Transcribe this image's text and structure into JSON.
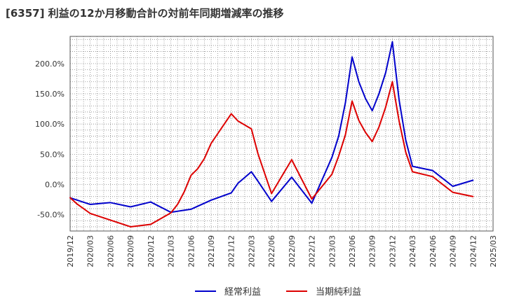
{
  "chart_data": {
    "type": "line",
    "title": "[6357]  利益の12か月移動合計の対前年同期増減率の推移",
    "xlabel": "",
    "ylabel": "",
    "x_ticks": [
      "2019/12",
      "2020/03",
      "2020/06",
      "2020/09",
      "2020/12",
      "2021/03",
      "2021/06",
      "2021/09",
      "2021/12",
      "2022/03",
      "2022/06",
      "2022/09",
      "2022/12",
      "2023/03",
      "2023/06",
      "2023/09",
      "2023/12",
      "2024/03",
      "2024/06",
      "2024/09",
      "2024/12",
      "2025/03"
    ],
    "y_ticks": [
      -50,
      0,
      50,
      100,
      150,
      200
    ],
    "y_tick_labels": [
      "-50.0%",
      "0.0%",
      "50.0%",
      "100.0%",
      "150.0%",
      "200.0%"
    ],
    "ylim": [
      -77,
      245
    ],
    "grid": true,
    "legend_position": "bottom",
    "series": [
      {
        "name": "経常利益",
        "color": "#0000cc",
        "points": [
          [
            "2019/12",
            -22
          ],
          [
            "2020/03",
            -33
          ],
          [
            "2020/06",
            -30
          ],
          [
            "2020/09",
            -37
          ],
          [
            "2020/12",
            -29
          ],
          [
            "2021/03",
            -46
          ],
          [
            "2021/06",
            -41
          ],
          [
            "2021/09",
            -26
          ],
          [
            "2021/12",
            -14
          ],
          [
            "2022/01",
            2
          ],
          [
            "2022/03",
            21
          ],
          [
            "2022/04",
            5
          ],
          [
            "2022/06",
            -28
          ],
          [
            "2022/09",
            12
          ],
          [
            "2022/12",
            -31
          ],
          [
            "2023/03",
            45
          ],
          [
            "2023/04",
            80
          ],
          [
            "2023/05",
            135
          ],
          [
            "2023/06",
            211
          ],
          [
            "2023/07",
            170
          ],
          [
            "2023/08",
            142
          ],
          [
            "2023/09",
            122
          ],
          [
            "2023/10",
            150
          ],
          [
            "2023/11",
            185
          ],
          [
            "2023/12",
            236
          ],
          [
            "2024/01",
            140
          ],
          [
            "2024/02",
            73
          ],
          [
            "2024/03",
            30
          ],
          [
            "2024/06",
            23
          ],
          [
            "2024/09",
            -3
          ],
          [
            "2024/12",
            7
          ]
        ]
      },
      {
        "name": "当期純利益",
        "color": "#dd0000",
        "points": [
          [
            "2019/12",
            -22
          ],
          [
            "2020/01",
            -32
          ],
          [
            "2020/03",
            -48
          ],
          [
            "2020/06",
            -59
          ],
          [
            "2020/09",
            -70
          ],
          [
            "2020/12",
            -66
          ],
          [
            "2021/03",
            -47
          ],
          [
            "2021/04",
            -33
          ],
          [
            "2021/05",
            -12
          ],
          [
            "2021/06",
            15
          ],
          [
            "2021/07",
            26
          ],
          [
            "2021/08",
            43
          ],
          [
            "2021/09",
            68
          ],
          [
            "2021/12",
            117
          ],
          [
            "2022/01",
            105
          ],
          [
            "2022/03",
            92
          ],
          [
            "2022/04",
            50
          ],
          [
            "2022/06",
            -15
          ],
          [
            "2022/09",
            41
          ],
          [
            "2022/12",
            -24
          ],
          [
            "2023/03",
            17
          ],
          [
            "2023/04",
            47
          ],
          [
            "2023/05",
            82
          ],
          [
            "2023/06",
            138
          ],
          [
            "2023/07",
            106
          ],
          [
            "2023/08",
            86
          ],
          [
            "2023/09",
            71
          ],
          [
            "2023/10",
            95
          ],
          [
            "2023/11",
            128
          ],
          [
            "2023/12",
            170
          ],
          [
            "2024/01",
            105
          ],
          [
            "2024/02",
            53
          ],
          [
            "2024/03",
            21
          ],
          [
            "2024/06",
            13
          ],
          [
            "2024/09",
            -13
          ],
          [
            "2024/12",
            -20
          ]
        ]
      }
    ]
  }
}
